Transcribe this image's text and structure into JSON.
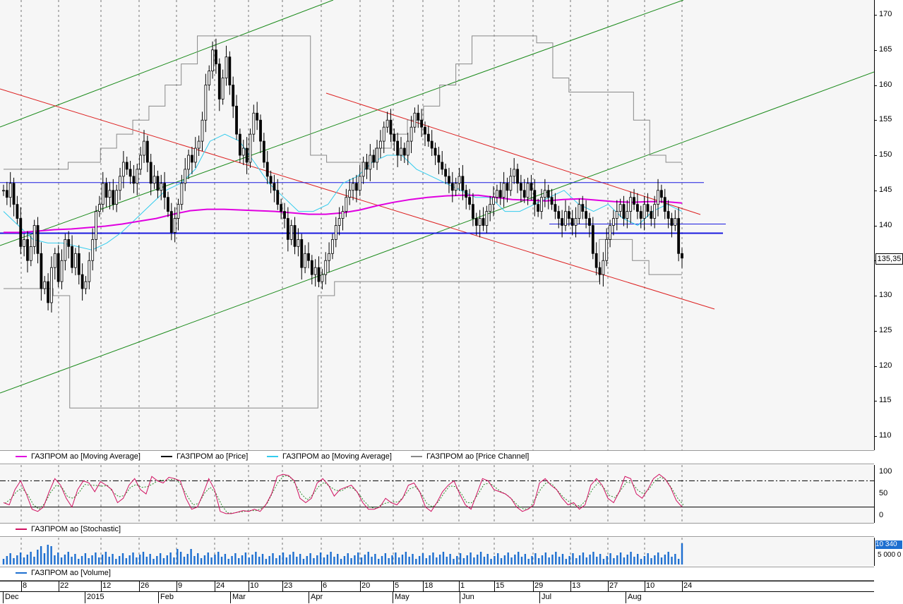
{
  "chart_data": [
    {
      "type": "candlestick",
      "instrument": "ГАЗПРОМ ао",
      "yticks": [
        "170",
        "165",
        "160",
        "155",
        "150",
        "145",
        "140",
        "135",
        "130",
        "125",
        "120",
        "115",
        "110"
      ],
      "ylim": [
        108.5,
        171.5
      ],
      "last_price": "135,35",
      "legend": [
        {
          "label": "ГАЗПРОМ ао [Moving Average]",
          "color": "#e000e0"
        },
        {
          "label": "ГАЗПРОМ ао [Price]",
          "color": "#000000"
        },
        {
          "label": "ГАЗПРОМ ао [Moving Average]",
          "color": "#33ccee"
        },
        {
          "label": "ГАЗПРОМ ао [Price Channel]",
          "color": "#888888"
        }
      ],
      "horizontal_levels": [
        146.1,
        138.9
      ],
      "close_series": [
        145,
        144,
        146,
        143,
        141,
        137,
        138,
        135,
        137,
        140,
        136,
        131,
        132,
        129,
        134,
        136,
        132,
        135,
        138,
        137,
        134,
        136,
        133,
        131,
        132,
        135,
        138,
        142,
        143,
        146,
        144,
        145,
        143,
        145,
        147,
        149,
        148,
        147,
        146,
        148,
        150,
        152,
        149,
        146,
        147,
        145,
        146,
        144,
        142,
        139,
        141,
        143,
        146,
        148,
        150,
        149,
        151,
        152,
        155,
        160,
        162,
        165,
        163,
        158,
        161,
        164,
        160,
        157,
        153,
        150,
        151,
        149,
        153,
        156,
        155,
        152,
        149,
        147,
        146,
        145,
        143,
        142,
        141,
        138,
        140,
        137,
        138,
        134,
        136,
        135,
        133,
        134,
        132,
        133,
        135,
        136,
        138,
        140,
        141,
        142,
        144,
        145,
        146,
        145,
        147,
        149,
        148,
        150,
        149,
        151,
        152,
        154,
        155,
        153,
        152,
        150,
        151,
        150,
        152,
        154,
        156,
        155,
        154,
        153,
        152,
        151,
        150,
        149,
        148,
        147,
        146,
        145,
        146,
        147,
        145,
        144,
        143,
        141,
        140,
        141,
        140,
        142,
        143,
        144,
        145,
        144,
        146,
        145,
        147,
        148,
        146,
        145,
        144,
        146,
        145,
        143,
        142,
        144,
        145,
        144,
        143,
        142,
        141,
        140,
        142,
        141,
        140,
        141,
        143,
        142,
        141,
        140,
        136,
        134,
        133,
        135,
        138,
        140,
        141,
        142,
        143,
        141,
        142,
        144,
        143,
        142,
        141,
        143,
        142,
        141,
        143,
        145,
        144,
        142,
        141,
        140,
        141,
        136,
        135.35
      ],
      "ma_slow": [
        139,
        139,
        139.2,
        139.4,
        139.5,
        139.7,
        139.9,
        140.2,
        140.6,
        141,
        141.6,
        142.1,
        142.3,
        142.3,
        142.2,
        142.1,
        142,
        141.8,
        141.6,
        141.6,
        141.8,
        142.2,
        142.8,
        143.3,
        143.7,
        144.0,
        144.2,
        144.3,
        144.3,
        144.0,
        143.7,
        143.6,
        143.5,
        143.7,
        143.8,
        143.6,
        143.4,
        143.3,
        143.4,
        143.4,
        143.2
      ],
      "ma_fast": [
        142,
        140,
        138,
        137.5,
        137.5,
        137,
        136.5,
        137.5,
        139,
        141,
        143,
        145,
        146,
        148,
        152,
        153,
        152,
        149,
        146,
        144,
        142,
        142,
        143,
        146,
        147,
        149,
        150,
        150,
        148,
        147,
        146,
        145,
        144,
        144,
        142,
        142,
        143,
        144,
        145,
        143,
        142,
        143,
        141,
        140,
        142,
        143,
        142
      ],
      "channel_upper": [
        148,
        148,
        148,
        148,
        149,
        149,
        151,
        153,
        155,
        157,
        160,
        163,
        167,
        167,
        167,
        167,
        167,
        167,
        167,
        150,
        149,
        149,
        149,
        151,
        153,
        155,
        157,
        160,
        163,
        167,
        167,
        167,
        167,
        166,
        161,
        159,
        159,
        159,
        159,
        155,
        150,
        149,
        149
      ],
      "channel_lower": [
        131,
        131,
        131,
        130,
        114,
        114,
        114,
        114,
        114,
        114,
        114,
        114,
        114,
        114,
        114,
        114,
        114,
        114,
        114,
        130,
        132,
        132,
        132,
        132,
        132,
        132,
        132,
        132,
        132,
        132,
        132,
        132,
        132,
        132,
        132,
        132,
        138,
        138,
        135,
        133,
        133,
        133
      ]
    },
    {
      "type": "line",
      "legend": [
        {
          "label": "ГАЗПРОМ ао [Stochastic]",
          "color": "#d01060"
        }
      ],
      "yticks": [
        "100",
        "50",
        "0"
      ],
      "ylim": [
        0,
        100
      ],
      "levels": [
        80,
        20
      ],
      "values": [
        30,
        25,
        60,
        80,
        50,
        15,
        10,
        20,
        55,
        85,
        70,
        40,
        20,
        60,
        80,
        75,
        55,
        78,
        70,
        60,
        30,
        40,
        70,
        85,
        60,
        50,
        90,
        80,
        75,
        88,
        85,
        80,
        40,
        15,
        20,
        50,
        85,
        60,
        10,
        5,
        5,
        8,
        12,
        10,
        15,
        10,
        25,
        50,
        90,
        95,
        92,
        80,
        40,
        30,
        40,
        75,
        85,
        70,
        45,
        60,
        65,
        70,
        55,
        30,
        15,
        15,
        20,
        40,
        30,
        25,
        40,
        70,
        75,
        55,
        20,
        10,
        30,
        55,
        70,
        80,
        50,
        25,
        15,
        50,
        85,
        80,
        60,
        55,
        50,
        40,
        20,
        10,
        15,
        25,
        75,
        85,
        70,
        60,
        40,
        25,
        30,
        15,
        25,
        70,
        85,
        70,
        40,
        30,
        55,
        90,
        85,
        50,
        40,
        60,
        85,
        95,
        85,
        65,
        35,
        20
      ]
    },
    {
      "type": "bar",
      "legend": [
        {
          "label": "ГАЗПРОМ ао [Volume]",
          "color": "#1e6fd0"
        }
      ],
      "last_value": "10 340",
      "tick_label": "5 000 0"
    }
  ],
  "xaxis": {
    "days": [
      "8",
      "22",
      "12",
      "26",
      "9",
      "24",
      "10",
      "23",
      "6",
      "20",
      "5",
      "18",
      "1",
      "15",
      "29",
      "13",
      "27",
      "10",
      "24"
    ],
    "months": [
      "Dec",
      "2015",
      "Feb",
      "Mar",
      "Apr",
      "May",
      "Jun",
      "Jul",
      "Aug"
    ]
  },
  "colors": {
    "up": "#ffffff",
    "down": "#000000",
    "ma_slow": "#e000e0",
    "ma_fast": "#33ccee",
    "channel": "#888888",
    "trend_green": "#1a8a1a",
    "trend_red": "#dd2020",
    "level_blue": "#1a1adf",
    "stoch": "#d01060",
    "stoch_signal": "#2a8a2a",
    "volume": "#1e6fd0"
  }
}
